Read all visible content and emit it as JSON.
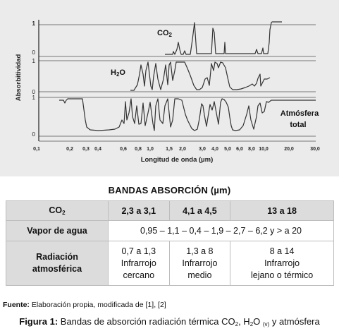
{
  "figure": {
    "y_label": "Absorbitividad",
    "x_label": "Longitud de onda (µm)",
    "x_ticks": [
      "0,1",
      "0,2",
      "0,3",
      "0,4",
      "0,6",
      "0,8",
      "1,0",
      "1,5",
      "2,0",
      "3,0",
      "4,0",
      "5,0",
      "6,0",
      "8,0",
      "10,0",
      "20,0",
      "30,0"
    ],
    "panels": [
      {
        "label_main": "CO",
        "label_sub": "2",
        "y_top": "1",
        "y_bottom": "0"
      },
      {
        "label_main": "H",
        "label_sub": "2",
        "label_end": "O",
        "y_top": "1",
        "y_bottom": "0"
      },
      {
        "label_line1": "Atmósfera",
        "label_line2": "total",
        "y_top": "1",
        "y_bottom": "0"
      }
    ]
  },
  "table": {
    "title": "BANDAS ABSORCIÓN (µm)",
    "header": {
      "row_label_main": "CO",
      "row_label_sub": "2",
      "cols": [
        "2,3 a 3,1",
        "4,1 a 4,5",
        "13 a 18"
      ]
    },
    "vapor": {
      "label": "Vapor de agua",
      "value": "0,95 – 1,1 – 0,4 – 1,9 – 2,7 – 6,2 y > a 20"
    },
    "radiation": {
      "label_line1": "Radiación",
      "label_line2": "atmosférica",
      "cells": [
        {
          "range": "0,7 a 1,3",
          "line2": "Infrarrojo",
          "line3": "cercano"
        },
        {
          "range": "1,3 a 8",
          "line2": "Infrarrojo",
          "line3": "medio"
        },
        {
          "range": "8 a 14",
          "line2": "Infrarrojo",
          "line3": "lejano o térmico"
        }
      ]
    }
  },
  "source": {
    "label": "Fuente:",
    "text": " Elaboración propia, modificada de [1], [2]"
  },
  "caption": {
    "label": "Figura 1:",
    "text_before": " Bandas de absorción radiación térmica CO",
    "sub1": "2",
    "text_mid": ", H",
    "sub2": "2",
    "text_o": "O ",
    "sub3": "(v)",
    "text_after": " y atmósfera"
  }
}
